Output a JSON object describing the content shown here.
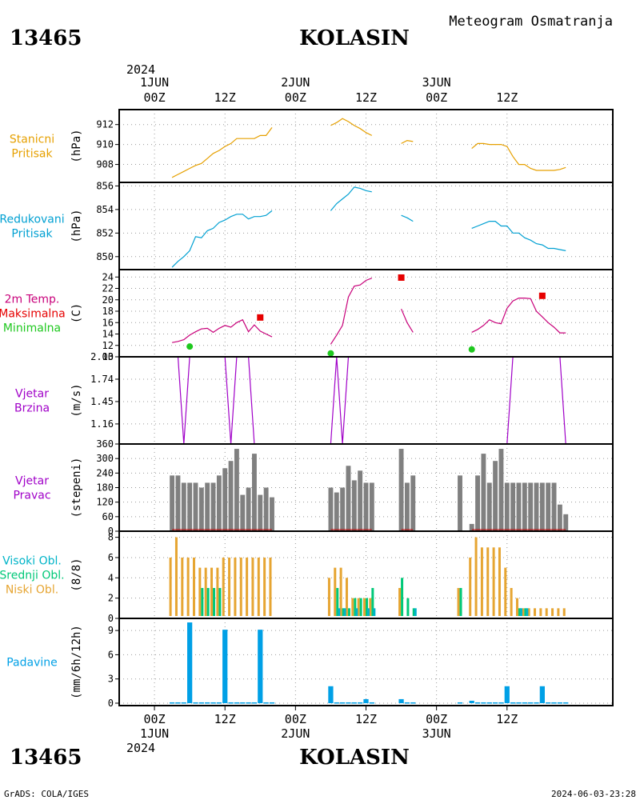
{
  "header": {
    "station_id": "13465",
    "station_name": "KOLASIN",
    "subtitle": "Meteogram Osmatranja"
  },
  "footer": {
    "station_id": "13465",
    "station_name": "KOLASIN",
    "credit": "GrADS: COLA/IGES",
    "timestamp": "2024-06-03-23:28"
  },
  "time_axis": {
    "hours_range": [
      -6,
      78
    ],
    "top_year": "2024",
    "bottom_year": "2024",
    "ticks": [
      {
        "hour": 0,
        "label": "00Z",
        "date": "1JUN"
      },
      {
        "hour": 12,
        "label": "12Z",
        "date": ""
      },
      {
        "hour": 24,
        "label": "00Z",
        "date": "2JUN"
      },
      {
        "hour": 36,
        "label": "12Z",
        "date": ""
      },
      {
        "hour": 48,
        "label": "00Z",
        "date": "3JUN"
      },
      {
        "hour": 60,
        "label": "12Z",
        "date": ""
      }
    ]
  },
  "colors": {
    "station_pressure": "#e6a000",
    "reduced_pressure": "#00a0d2",
    "temperature": "#c8007a",
    "tmax": "#e60000",
    "tmin": "#1ec81e",
    "wind": "#a000c8",
    "winddir_bar": "#808080",
    "winddir_base": "#c80000",
    "cloud_high": "#00b4c8",
    "cloud_mid": "#00c878",
    "cloud_low": "#e6a532",
    "precip": "#00a0e6",
    "grid": "#999999"
  },
  "chart_data": [
    {
      "type": "line",
      "panel": "station_pressure",
      "label_lines": [
        "Stanicni",
        "Pritisak"
      ],
      "ylabel": "(hPa)",
      "ylim": [
        906.2,
        913.5
      ],
      "yticks": [
        908,
        910,
        912
      ],
      "series": [
        {
          "x": [
            3,
            4,
            5,
            6,
            7,
            8,
            9,
            10,
            11,
            12,
            13,
            14,
            15,
            16,
            17,
            18,
            19,
            20
          ],
          "values": [
            906.7,
            907.0,
            907.3,
            907.6,
            907.9,
            908.1,
            908.6,
            909.1,
            909.4,
            909.8,
            910.1,
            910.6,
            910.6,
            910.6,
            910.6,
            910.9,
            910.9,
            911.7
          ]
        },
        {
          "x": [
            30,
            31,
            32,
            33,
            34,
            35,
            36,
            37
          ],
          "values": [
            911.9,
            912.2,
            912.6,
            912.3,
            911.9,
            911.6,
            911.2,
            910.9
          ]
        },
        {
          "x": [
            42,
            43,
            44
          ],
          "values": [
            910.1,
            910.4,
            910.3
          ]
        },
        {
          "x": [
            54,
            55,
            56,
            57,
            58,
            59,
            60,
            61,
            62,
            63,
            64,
            65,
            66,
            67,
            68,
            69,
            70
          ],
          "values": [
            909.6,
            910.1,
            910.1,
            910.0,
            910.0,
            910.0,
            909.8,
            908.8,
            908.0,
            908.0,
            907.6,
            907.4,
            907.4,
            907.4,
            907.4,
            907.5,
            907.7
          ]
        }
      ]
    },
    {
      "type": "line",
      "panel": "reduced_pressure",
      "label_lines": [
        "Redukovani",
        "Pritisak"
      ],
      "ylabel": "(hPa)",
      "ylim": [
        848.9,
        856.3
      ],
      "yticks": [
        850,
        852,
        854,
        856
      ],
      "series": [
        {
          "x": [
            3,
            4,
            5,
            6,
            7,
            8,
            9,
            10,
            11,
            12,
            13,
            14,
            15,
            16,
            17,
            18,
            19,
            20
          ],
          "values": [
            849.1,
            849.6,
            850.0,
            850.5,
            851.7,
            851.6,
            852.2,
            852.4,
            852.9,
            853.1,
            853.4,
            853.6,
            853.6,
            853.2,
            853.4,
            853.4,
            853.5,
            853.9
          ]
        },
        {
          "x": [
            30,
            31,
            32,
            33,
            34,
            35,
            36,
            37
          ],
          "values": [
            853.9,
            854.5,
            854.9,
            855.3,
            855.9,
            855.8,
            855.6,
            855.5
          ]
        },
        {
          "x": [
            42,
            43,
            44
          ],
          "values": [
            853.5,
            853.3,
            853.0
          ]
        },
        {
          "x": [
            54,
            55,
            56,
            57,
            58,
            59,
            60,
            61,
            62,
            63,
            64,
            65,
            66,
            67,
            68,
            69,
            70
          ],
          "values": [
            852.4,
            852.6,
            852.8,
            853.0,
            853.0,
            852.6,
            852.6,
            852.0,
            852.0,
            851.6,
            851.4,
            851.1,
            851.0,
            850.7,
            850.7,
            850.6,
            850.5
          ]
        }
      ]
    },
    {
      "type": "line",
      "panel": "temperature",
      "label_lines": [
        "2m Temp.",
        "Maksimalna",
        "Minimalna"
      ],
      "ylabel": "(C)",
      "ylim": [
        10,
        25.3
      ],
      "yticks": [
        10,
        12,
        14,
        16,
        18,
        20,
        22,
        24
      ],
      "series": [
        {
          "name": "2m Temp.",
          "x": [
            3,
            4,
            5,
            6,
            7,
            8,
            9,
            10,
            11,
            12,
            13,
            14,
            15,
            16,
            17,
            18,
            19,
            20
          ],
          "values": [
            12.5,
            12.7,
            13.0,
            13.8,
            14.4,
            14.9,
            15.0,
            14.3,
            15.0,
            15.5,
            15.2,
            16.0,
            16.5,
            14.4,
            15.6,
            14.5,
            14.0,
            13.5
          ]
        },
        {
          "name": "2m Temp.",
          "x": [
            30,
            31,
            32,
            33,
            34,
            35,
            36,
            37
          ],
          "values": [
            12.2,
            13.8,
            15.5,
            20.5,
            22.4,
            22.6,
            23.4,
            23.8
          ]
        },
        {
          "name": "2m Temp.",
          "x": [
            42,
            43,
            44
          ],
          "values": [
            18.4,
            16.0,
            14.3
          ]
        },
        {
          "name": "2m Temp.",
          "x": [
            54,
            55,
            56,
            57,
            58,
            59,
            60,
            61,
            62,
            63,
            64,
            65,
            66,
            67,
            68,
            69,
            70
          ],
          "values": [
            14.3,
            14.8,
            15.5,
            16.5,
            16.0,
            15.8,
            18.5,
            19.8,
            20.3,
            20.3,
            20.2,
            18.0,
            17.0,
            16.0,
            15.2,
            14.2,
            14.2
          ]
        }
      ],
      "tmax": [
        {
          "x": 18,
          "value": 16.9
        },
        {
          "x": 42,
          "value": 23.9
        },
        {
          "x": 66,
          "value": 20.7
        }
      ],
      "tmin": [
        {
          "x": 6,
          "value": 11.8
        },
        {
          "x": 30,
          "value": 10.6
        },
        {
          "x": 54,
          "value": 11.3
        }
      ]
    },
    {
      "type": "line",
      "panel": "wind_speed",
      "label_lines": [
        "Vjetar",
        "Brzina"
      ],
      "ylabel": "(m/s)",
      "ylim": [
        0.9,
        2.03
      ],
      "yticks": [
        1.16,
        1.45,
        1.74,
        2.03
      ],
      "tick_labels": [
        "1.16",
        "1.45",
        "1.74",
        "2.03"
      ],
      "series": [
        {
          "x": [
            3,
            4,
            5,
            6,
            7,
            8,
            9,
            10,
            11,
            12,
            13,
            14,
            15,
            16,
            17,
            18,
            19,
            20
          ],
          "values": [
            2.03,
            2.03,
            0.9,
            2.03,
            2.03,
            2.03,
            2.03,
            2.03,
            2.03,
            2.03,
            0.9,
            2.03,
            2.03,
            2.03,
            0.9,
            0.9,
            0.9,
            0.9
          ]
        },
        {
          "x": [
            30,
            31,
            32,
            33,
            34,
            35,
            36,
            37
          ],
          "values": [
            0.9,
            2.03,
            0.9,
            2.03,
            2.03,
            2.03,
            2.03,
            2.03
          ]
        },
        {
          "x": [
            42,
            43,
            44
          ],
          "values": [
            0.9,
            0.9,
            0.9
          ]
        },
        {
          "x": [
            54,
            55,
            56,
            57,
            58,
            59,
            60,
            61,
            62,
            63,
            64,
            65,
            66,
            67,
            68,
            69,
            70
          ],
          "values": [
            0.9,
            0.9,
            0.9,
            0.9,
            0.9,
            0.9,
            0.9,
            2.03,
            2.03,
            2.03,
            2.03,
            2.03,
            2.03,
            2.03,
            2.03,
            2.03,
            0.9
          ]
        }
      ]
    },
    {
      "type": "bar",
      "panel": "wind_direction",
      "label_lines": [
        "Vjetar",
        "Pravac"
      ],
      "ylabel": "(stepeni)",
      "ylim": [
        0,
        360
      ],
      "yticks": [
        0,
        60,
        120,
        180,
        240,
        300,
        360
      ],
      "x": [
        3,
        4,
        5,
        6,
        7,
        8,
        9,
        10,
        11,
        12,
        13,
        14,
        15,
        16,
        17,
        18,
        19,
        20,
        30,
        31,
        32,
        33,
        34,
        35,
        36,
        37,
        42,
        43,
        44,
        52,
        54,
        55,
        56,
        57,
        58,
        59,
        60,
        61,
        62,
        63,
        64,
        65,
        66,
        67,
        68,
        69,
        70
      ],
      "values": [
        230,
        230,
        200,
        200,
        200,
        180,
        200,
        200,
        230,
        260,
        290,
        340,
        150,
        180,
        320,
        150,
        180,
        140,
        180,
        160,
        180,
        270,
        210,
        250,
        200,
        200,
        340,
        200,
        230,
        230,
        30,
        230,
        320,
        200,
        290,
        340,
        200,
        200,
        200,
        200,
        200,
        200,
        200,
        200,
        200,
        110,
        70
      ]
    },
    {
      "type": "bar",
      "panel": "clouds",
      "label_lines": [
        "Visoki Obl.",
        "Srednji Obl.",
        "Niski Obl."
      ],
      "ylabel": "(8/8)",
      "ylim": [
        0,
        8.6
      ],
      "yticks": [
        0,
        2,
        4,
        6,
        8
      ],
      "x": [
        3,
        4,
        5,
        6,
        7,
        8,
        9,
        10,
        11,
        12,
        13,
        14,
        15,
        16,
        17,
        18,
        19,
        20,
        30,
        31,
        32,
        33,
        34,
        35,
        36,
        37,
        42,
        43,
        44,
        52,
        54,
        55,
        56,
        57,
        58,
        59,
        60,
        61,
        62,
        63,
        64,
        65,
        66,
        67,
        68,
        69,
        70
      ],
      "series": [
        {
          "name": "Niski Obl.",
          "values": [
            6,
            8,
            6,
            6,
            6,
            5,
            5,
            5,
            5,
            6,
            6,
            6,
            6,
            6,
            6,
            6,
            6,
            6,
            4,
            5,
            5,
            4,
            2,
            2,
            2,
            2,
            3,
            0,
            0,
            3,
            6,
            8,
            7,
            7,
            7,
            7,
            5,
            3,
            2,
            1,
            1,
            1,
            1,
            1,
            1,
            1,
            1
          ]
        },
        {
          "name": "Srednji Obl.",
          "values": [
            0,
            0,
            0,
            0,
            0,
            3,
            3,
            3,
            3,
            0,
            0,
            0,
            0,
            0,
            0,
            0,
            0,
            0,
            0,
            3,
            1,
            1,
            2,
            2,
            2,
            3,
            4,
            2,
            1,
            3,
            0,
            0,
            0,
            0,
            0,
            0,
            0,
            0,
            1,
            1,
            0,
            0,
            0,
            0,
            0,
            0,
            0
          ]
        },
        {
          "name": "Visoki Obl.",
          "values": [
            0,
            0,
            0,
            0,
            0,
            0,
            0,
            0,
            0,
            0,
            0,
            0,
            0,
            0,
            0,
            0,
            0,
            0,
            0,
            1,
            1,
            0,
            1,
            0,
            1,
            1,
            0,
            0,
            1,
            0,
            0,
            0,
            0,
            0,
            0,
            0,
            0,
            0,
            1,
            1,
            0,
            0,
            0,
            0,
            0,
            0,
            0
          ]
        }
      ]
    },
    {
      "type": "bar",
      "panel": "precipitation",
      "label_lines": [
        "Padavine"
      ],
      "ylabel": "(mm/6h/12h)",
      "ylim": [
        -0.3,
        10.5
      ],
      "yticks": [
        0,
        3,
        6,
        9
      ],
      "x": [
        3,
        4,
        5,
        6,
        7,
        8,
        9,
        10,
        11,
        12,
        13,
        14,
        15,
        16,
        17,
        18,
        19,
        20,
        30,
        31,
        32,
        33,
        34,
        35,
        36,
        37,
        42,
        43,
        44,
        52,
        54,
        55,
        56,
        57,
        58,
        59,
        60,
        61,
        62,
        63,
        64,
        65,
        66,
        67,
        68,
        69,
        70
      ],
      "values": [
        0.1,
        0.1,
        0.1,
        10.0,
        0.1,
        0.1,
        0.1,
        0.1,
        0.1,
        9.1,
        0.1,
        0.1,
        0.1,
        0.1,
        0.1,
        9.1,
        0.1,
        0.1,
        2.1,
        0.1,
        0.1,
        0.1,
        0.1,
        0.1,
        0.5,
        0.1,
        0.5,
        0.1,
        0.1,
        0.1,
        0.3,
        0.1,
        0.1,
        0.1,
        0.1,
        0.1,
        2.1,
        0.1,
        0.1,
        0.1,
        0.1,
        0.1,
        2.1,
        0.1,
        0.1,
        0.1,
        0.1
      ]
    }
  ]
}
